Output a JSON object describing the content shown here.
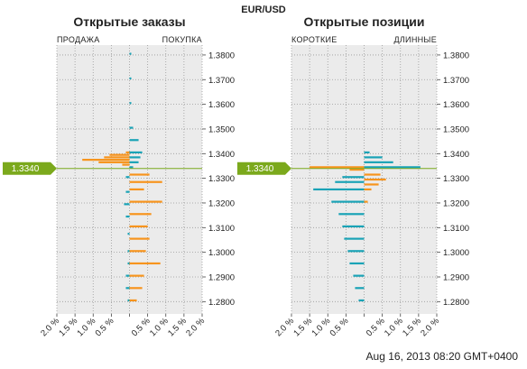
{
  "header": {
    "pair": "EUR/USD"
  },
  "timestamp": "Aug 16, 2013 08:20 GMT+0400",
  "colors": {
    "orange": "#f7941d",
    "teal": "#1aa3b6",
    "marker": "#7ba91c",
    "panel": "#ebebeb"
  },
  "current_price": {
    "label": "1.3340",
    "value": 1.334
  },
  "chart_data": [
    {
      "type": "bar",
      "orientation": "horizontal",
      "title": "Открытые заказы",
      "left_label": "ПРОДАЖА",
      "right_label": "ПОКУПКА",
      "ylim": [
        1.275,
        1.384
      ],
      "yticks": [
        "1.2800",
        "1.2900",
        "1.3000",
        "1.3100",
        "1.3200",
        "1.3300",
        "1.3400",
        "1.3500",
        "1.3600",
        "1.3700",
        "1.3800"
      ],
      "xlim": [
        -2.0,
        2.0
      ],
      "xticks": [
        "2.0 %",
        "1.5 %",
        "1.0 %",
        "0.5 %",
        "",
        "0.5 %",
        "1.0 %",
        "1.5 %",
        "2.0 %"
      ],
      "series": [
        {
          "color": "orange",
          "side": "left",
          "y": [
            1.3405,
            1.3395,
            1.3385,
            1.3375,
            1.3365,
            1.3355
          ],
          "values": [
            0.1,
            0.55,
            0.7,
            1.3,
            0.85,
            0.2
          ]
        },
        {
          "color": "teal",
          "side": "right",
          "y": [
            1.3805,
            1.3705,
            1.3605,
            1.3505,
            1.3455,
            1.3405,
            1.3385,
            1.3365,
            1.3345
          ],
          "values": [
            0.05,
            0.05,
            0.05,
            0.1,
            0.25,
            0.35,
            0.3,
            0.25,
            0.1
          ]
        },
        {
          "color": "orange",
          "side": "right",
          "y": [
            1.3315,
            1.3285,
            1.3255,
            1.3205,
            1.3155,
            1.3105,
            1.3055,
            1.3005,
            1.2955,
            1.2905,
            1.2855,
            1.2805
          ],
          "values": [
            0.55,
            0.9,
            0.4,
            0.9,
            0.6,
            0.5,
            0.55,
            0.45,
            0.85,
            0.4,
            0.35,
            0.2
          ]
        },
        {
          "color": "teal",
          "side": "left",
          "y": [
            1.3305,
            1.3245,
            1.3195,
            1.3145,
            1.3075,
            1.3005,
            1.2955,
            1.2905,
            1.2855,
            1.2805
          ],
          "values": [
            0.1,
            0.1,
            0.15,
            0.1,
            0.05,
            0.05,
            0.05,
            0.1,
            0.1,
            0.05
          ]
        }
      ]
    },
    {
      "type": "bar",
      "orientation": "horizontal",
      "title": "Открытые позиции",
      "left_label": "КОРОТКИЕ",
      "right_label": "ДЛИННЫЕ",
      "ylim": [
        1.275,
        1.384
      ],
      "yticks": [
        "1.2800",
        "1.2900",
        "1.3000",
        "1.3100",
        "1.3200",
        "1.3300",
        "1.3400",
        "1.3500",
        "1.3600",
        "1.3700",
        "1.3800"
      ],
      "xlim": [
        -2.0,
        2.0
      ],
      "xticks": [
        "2.0 %",
        "1.5 %",
        "1.0 %",
        "0.5 %",
        "",
        "0.5 %",
        "1.0 %",
        "1.5 %",
        "2.0 %"
      ],
      "series": [
        {
          "color": "orange",
          "side": "left",
          "y": [
            1.3345,
            1.3335
          ],
          "values": [
            1.5,
            0.4
          ]
        },
        {
          "color": "teal",
          "side": "right",
          "y": [
            1.3405,
            1.3385,
            1.3365,
            1.3345
          ],
          "values": [
            0.15,
            0.5,
            0.8,
            1.55
          ]
        },
        {
          "color": "orange",
          "side": "right",
          "y": [
            1.3315,
            1.3295,
            1.3275,
            1.3255,
            1.3205
          ],
          "values": [
            0.45,
            0.6,
            0.4,
            0.2,
            0.1
          ]
        },
        {
          "color": "teal",
          "side": "left",
          "y": [
            1.3305,
            1.3285,
            1.3255,
            1.3205,
            1.3155,
            1.3105,
            1.3055,
            1.3005,
            1.2955,
            1.2905,
            1.2855,
            1.2805
          ],
          "values": [
            0.6,
            0.8,
            1.4,
            0.9,
            0.7,
            0.6,
            0.55,
            0.45,
            0.4,
            0.3,
            0.25,
            0.15
          ]
        }
      ]
    }
  ]
}
